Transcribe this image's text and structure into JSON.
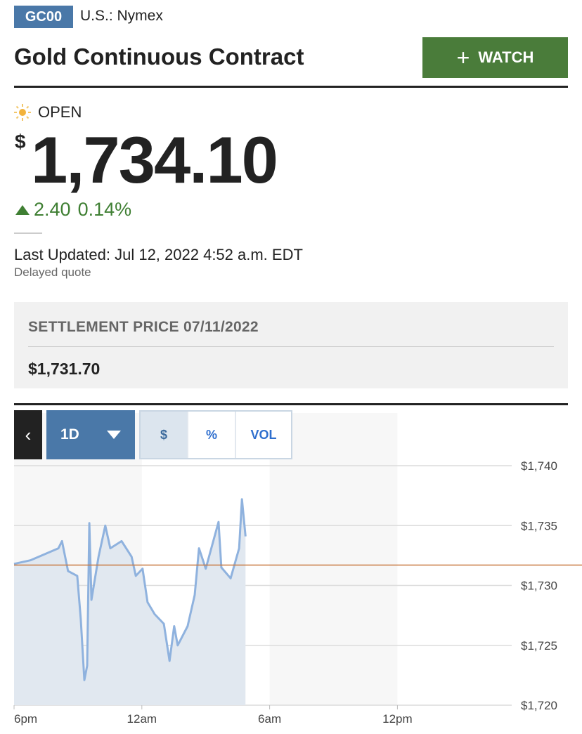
{
  "header": {
    "symbol": "GC00",
    "exchange": "U.S.: Nymex",
    "title": "Gold Continuous Contract",
    "watch_label": "WATCH",
    "watch_icon": "plus-icon"
  },
  "quote": {
    "status": "OPEN",
    "status_icon": "sun-icon",
    "currency": "$",
    "price": "1,734.10",
    "change": "2.40",
    "change_pct": "0.14%",
    "direction": "up",
    "last_updated": "Last Updated: Jul 12, 2022 4:52 a.m. EDT",
    "delayed": "Delayed quote"
  },
  "settlement": {
    "label": "SETTLEMENT PRICE 07/11/2022",
    "value": "$1,731.70"
  },
  "chart_controls": {
    "back_icon": "chevron-left-icon",
    "range": "1D",
    "modes": [
      "$",
      "%",
      "VOL"
    ],
    "active_mode": "$"
  },
  "colors": {
    "badge": "#4a78a8",
    "watch": "#4a7c3a",
    "up": "#3f7f33",
    "line": "#8fb2de",
    "area": "#e1e8f0",
    "reference": "#c87941"
  },
  "chart_data": {
    "type": "area",
    "x_ticks": [
      "6pm",
      "12am",
      "6am",
      "12pm"
    ],
    "y_ticks": [
      "$1,740",
      "$1,735",
      "$1,730",
      "$1,725",
      "$1,720"
    ],
    "ylim": [
      1720,
      1740
    ],
    "xlim": [
      "18:00",
      "17:20"
    ],
    "grid": true,
    "reference_line": {
      "value": 1731.7
    },
    "series": [
      {
        "x": [
          "18:00",
          "18:46",
          "20:05",
          "20:15",
          "20:32",
          "20:58",
          "21:08",
          "21:18",
          "21:26",
          "21:32",
          "21:38",
          "21:58",
          "22:17",
          "22:31",
          "23:03",
          "23:31",
          "23:43",
          "00:02",
          "00:16",
          "00:36",
          "01:02",
          "01:18",
          "01:31",
          "01:41",
          "02:09",
          "02:29",
          "02:41",
          "03:00",
          "03:36",
          "03:44",
          "04:10",
          "04:34",
          "04:42",
          "04:52"
        ],
        "y": [
          1731.8,
          1732.1,
          1733.1,
          1733.7,
          1731.2,
          1730.8,
          1727.2,
          1722.1,
          1723.3,
          1735.2,
          1728.8,
          1732.4,
          1735.0,
          1733.1,
          1733.7,
          1732.4,
          1730.8,
          1731.4,
          1728.6,
          1727.6,
          1726.8,
          1723.7,
          1726.6,
          1725.0,
          1726.6,
          1729.2,
          1733.1,
          1731.4,
          1735.3,
          1731.5,
          1730.6,
          1733.1,
          1737.2,
          1734.1
        ]
      }
    ]
  }
}
